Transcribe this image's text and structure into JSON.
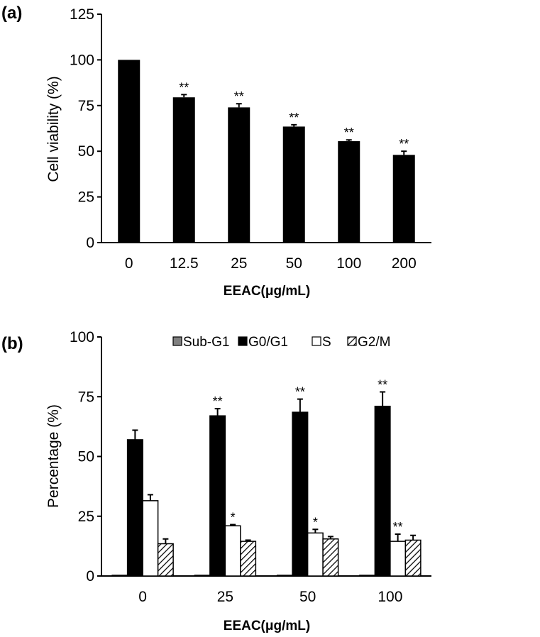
{
  "chart_data": [
    {
      "type": "bar",
      "panel_label": "(a)",
      "categories": [
        "0",
        "12.5",
        "25",
        "50",
        "100",
        "200"
      ],
      "values": [
        100,
        79.5,
        74,
        63.5,
        55.5,
        48
      ],
      "errors": [
        0,
        1.5,
        2,
        1,
        0.7,
        2
      ],
      "annotations": [
        "",
        "**",
        "**",
        "**",
        "**",
        "**"
      ],
      "xlabel": "EEAC(μg/mL)",
      "ylabel": "Cell viability (%)",
      "ylim": [
        0,
        125
      ],
      "yticks": [
        "0",
        "25",
        "50",
        "75",
        "100",
        "125"
      ],
      "bar_color": "#000000",
      "grid": false
    },
    {
      "type": "bar",
      "panel_label": "(b)",
      "categories": [
        "0",
        "25",
        "50",
        "100"
      ],
      "series": [
        {
          "name": "Sub-G1",
          "values": [
            0.3,
            0.3,
            0.3,
            0.3
          ],
          "errors": [
            0,
            0,
            0,
            0
          ],
          "annotations": [
            "",
            "",
            "",
            ""
          ],
          "fill": "#808080",
          "pattern": "solid"
        },
        {
          "name": "G0/G1",
          "values": [
            57,
            67,
            68.5,
            71
          ],
          "errors": [
            4,
            3,
            5.5,
            6
          ],
          "annotations": [
            "",
            "**",
            "**",
            "**"
          ],
          "fill": "#000000",
          "pattern": "solid"
        },
        {
          "name": "S",
          "values": [
            31.5,
            21,
            18,
            14.5
          ],
          "errors": [
            2.5,
            0.5,
            1.5,
            3
          ],
          "annotations": [
            "",
            "*",
            "*",
            "**"
          ],
          "fill": "#ffffff",
          "pattern": "solid"
        },
        {
          "name": "G2/M",
          "values": [
            13.5,
            14.5,
            15.5,
            15
          ],
          "errors": [
            2,
            0.5,
            1,
            2
          ],
          "annotations": [
            "",
            "",
            "",
            ""
          ],
          "fill": "#ffffff",
          "pattern": "diagonal-hatch"
        }
      ],
      "xlabel": "EEAC(μg/mL)",
      "ylabel": "Percentage (%)",
      "ylim": [
        0,
        100
      ],
      "yticks": [
        "0",
        "25",
        "50",
        "75",
        "100"
      ],
      "legend": "top",
      "grid": false
    }
  ]
}
